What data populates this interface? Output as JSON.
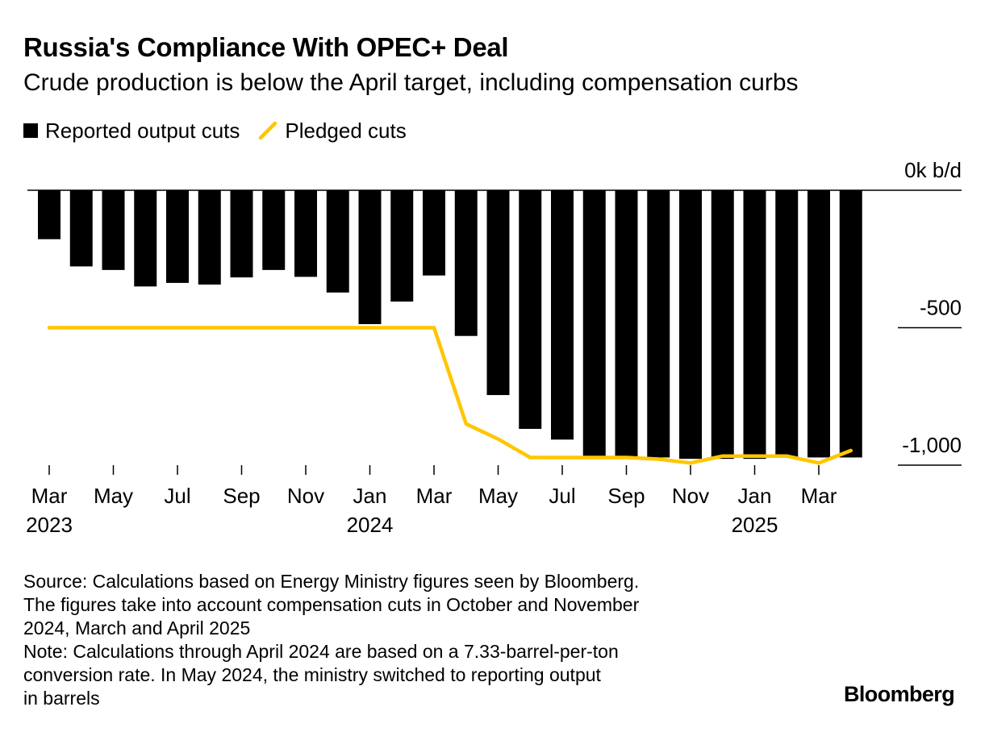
{
  "title": "Russia's Compliance With OPEC+ Deal",
  "subtitle": "Crude production is below the April target, including compensation curbs",
  "colors": {
    "bar": "#000000",
    "line": "#ffc600",
    "gridline": "#000000",
    "background": "#ffffff"
  },
  "source": "Source: Calculations based on Energy Ministry figures seen by Bloomberg.\nThe figures take into account compensation cuts in October and November\n2024, March and April 2025",
  "note": "Note: Calculations through April 2024 are based on a 7.33-barrel-per-ton\nconversion rate. In May 2024, the ministry switched to reporting output\nin barrels",
  "brand": "Bloomberg",
  "chart_data": {
    "type": "bar",
    "title": "Russia's Compliance With OPEC+ Deal",
    "subtitle": "Crude production is below the April target, including compensation curbs",
    "legend": {
      "placement": "top-left",
      "entries": [
        "Reported output cuts",
        "Pledged cuts"
      ]
    },
    "categories": [
      "2023-03",
      "2023-04",
      "2023-05",
      "2023-06",
      "2023-07",
      "2023-08",
      "2023-09",
      "2023-10",
      "2023-11",
      "2023-12",
      "2024-01",
      "2024-02",
      "2024-03",
      "2024-04",
      "2024-05",
      "2024-06",
      "2024-07",
      "2024-08",
      "2024-09",
      "2024-10",
      "2024-11",
      "2024-12",
      "2025-01",
      "2025-02",
      "2025-03",
      "2025-04"
    ],
    "series": [
      {
        "name": "Reported output cuts",
        "type": "bar",
        "values": [
          -178,
          -277,
          -290,
          -350,
          -337,
          -343,
          -317,
          -290,
          -315,
          -372,
          -487,
          -405,
          -310,
          -530,
          -745,
          -868,
          -907,
          -972,
          -972,
          -972,
          -977,
          -977,
          -977,
          -972,
          -972,
          -972
        ]
      },
      {
        "name": "Pledged cuts",
        "type": "line",
        "values": [
          -500,
          -500,
          -500,
          -500,
          -500,
          -500,
          -500,
          -500,
          -500,
          -500,
          -500,
          -500,
          -500,
          -850,
          -905,
          -972,
          -972,
          -972,
          -972,
          -978,
          -992,
          -967,
          -967,
          -967,
          -992,
          -947
        ]
      }
    ],
    "ylim": [
      -1000,
      0
    ],
    "y_ticks": [
      {
        "value": 0,
        "label": "0k b/d"
      },
      {
        "value": -500,
        "label": "-500"
      },
      {
        "value": -1000,
        "label": "-1,000"
      }
    ],
    "x_ticks": [
      {
        "month": "Mar",
        "year": "2023"
      },
      {
        "month": "May",
        "year": ""
      },
      {
        "month": "Jul",
        "year": ""
      },
      {
        "month": "Sep",
        "year": ""
      },
      {
        "month": "Nov",
        "year": ""
      },
      {
        "month": "Jan",
        "year": "2024"
      },
      {
        "month": "Mar",
        "year": ""
      },
      {
        "month": "May",
        "year": ""
      },
      {
        "month": "Jul",
        "year": ""
      },
      {
        "month": "Sep",
        "year": ""
      },
      {
        "month": "Nov",
        "year": ""
      },
      {
        "month": "Jan",
        "year": "2025"
      },
      {
        "month": "Mar",
        "year": ""
      }
    ],
    "grid": true,
    "y_axis_side": "right"
  }
}
